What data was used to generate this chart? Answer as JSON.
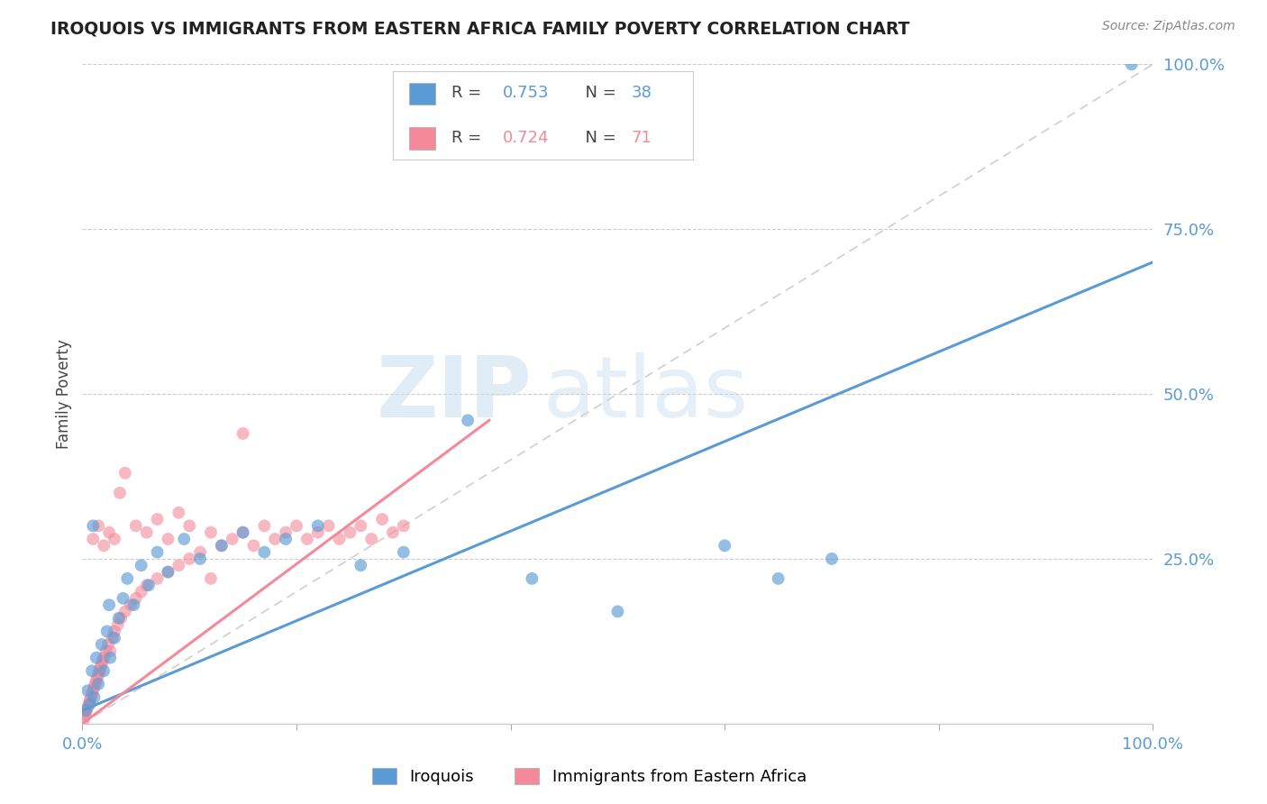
{
  "title": "IROQUOIS VS IMMIGRANTS FROM EASTERN AFRICA FAMILY POVERTY CORRELATION CHART",
  "source": "Source: ZipAtlas.com",
  "ylabel": "Family Poverty",
  "xlim": [
    0,
    100
  ],
  "ylim": [
    0,
    100
  ],
  "legend_R1": "0.753",
  "legend_N1": "38",
  "legend_R2": "0.724",
  "legend_N2": "71",
  "color_blue": "#5B9BD5",
  "color_pink": "#F4899A",
  "color_gray_dashed": "#BBBBBB",
  "watermark_zip": "ZIP",
  "watermark_atlas": "atlas",
  "series1_label": "Iroquois",
  "series2_label": "Immigrants from Eastern Africa",
  "blue_line": [
    [
      0,
      2
    ],
    [
      100,
      70
    ]
  ],
  "pink_line": [
    [
      0,
      0
    ],
    [
      38,
      46
    ]
  ],
  "diagonal_line": [
    [
      0,
      0
    ],
    [
      100,
      100
    ]
  ],
  "blue_x": [
    0.3,
    0.5,
    0.7,
    0.9,
    1.1,
    1.3,
    1.5,
    1.8,
    2.0,
    2.3,
    2.6,
    3.0,
    3.4,
    3.8,
    4.2,
    4.8,
    5.5,
    6.2,
    7.0,
    8.0,
    9.5,
    11.0,
    13.0,
    15.0,
    17.0,
    19.0,
    22.0,
    26.0,
    30.0,
    36.0,
    42.0,
    50.0,
    60.0,
    65.0,
    70.0,
    98.0,
    1.0,
    2.5
  ],
  "blue_y": [
    2.0,
    5.0,
    3.0,
    8.0,
    4.0,
    10.0,
    6.0,
    12.0,
    8.0,
    14.0,
    10.0,
    13.0,
    16.0,
    19.0,
    22.0,
    18.0,
    24.0,
    21.0,
    26.0,
    23.0,
    28.0,
    25.0,
    27.0,
    29.0,
    26.0,
    28.0,
    30.0,
    24.0,
    26.0,
    46.0,
    22.0,
    17.0,
    27.0,
    22.0,
    25.0,
    100.0,
    30.0,
    18.0
  ],
  "pink_x": [
    0.1,
    0.2,
    0.3,
    0.4,
    0.5,
    0.6,
    0.7,
    0.8,
    0.9,
    1.0,
    1.1,
    1.2,
    1.3,
    1.4,
    1.5,
    1.6,
    1.7,
    1.8,
    1.9,
    2.0,
    2.2,
    2.4,
    2.6,
    2.8,
    3.0,
    3.3,
    3.6,
    4.0,
    4.5,
    5.0,
    5.5,
    6.0,
    7.0,
    8.0,
    9.0,
    10.0,
    11.0,
    12.0,
    13.0,
    14.0,
    15.0,
    16.0,
    17.0,
    18.0,
    19.0,
    20.0,
    21.0,
    22.0,
    23.0,
    24.0,
    25.0,
    26.0,
    27.0,
    28.0,
    29.0,
    30.0,
    1.0,
    1.5,
    2.0,
    2.5,
    3.0,
    3.5,
    4.0,
    5.0,
    6.0,
    7.0,
    8.0,
    9.0,
    10.0,
    12.0,
    15.0
  ],
  "pink_y": [
    0.5,
    1.0,
    1.5,
    2.0,
    2.5,
    3.0,
    3.5,
    4.0,
    4.5,
    5.0,
    5.5,
    6.0,
    6.5,
    7.0,
    7.5,
    8.0,
    8.5,
    9.0,
    9.5,
    10.0,
    11.0,
    12.0,
    11.0,
    13.0,
    14.0,
    15.0,
    16.0,
    17.0,
    18.0,
    19.0,
    20.0,
    21.0,
    22.0,
    23.0,
    24.0,
    25.0,
    26.0,
    22.0,
    27.0,
    28.0,
    29.0,
    27.0,
    30.0,
    28.0,
    29.0,
    30.0,
    28.0,
    29.0,
    30.0,
    28.0,
    29.0,
    30.0,
    28.0,
    31.0,
    29.0,
    30.0,
    28.0,
    30.0,
    27.0,
    29.0,
    28.0,
    35.0,
    38.0,
    30.0,
    29.0,
    31.0,
    28.0,
    32.0,
    30.0,
    29.0,
    44.0
  ]
}
